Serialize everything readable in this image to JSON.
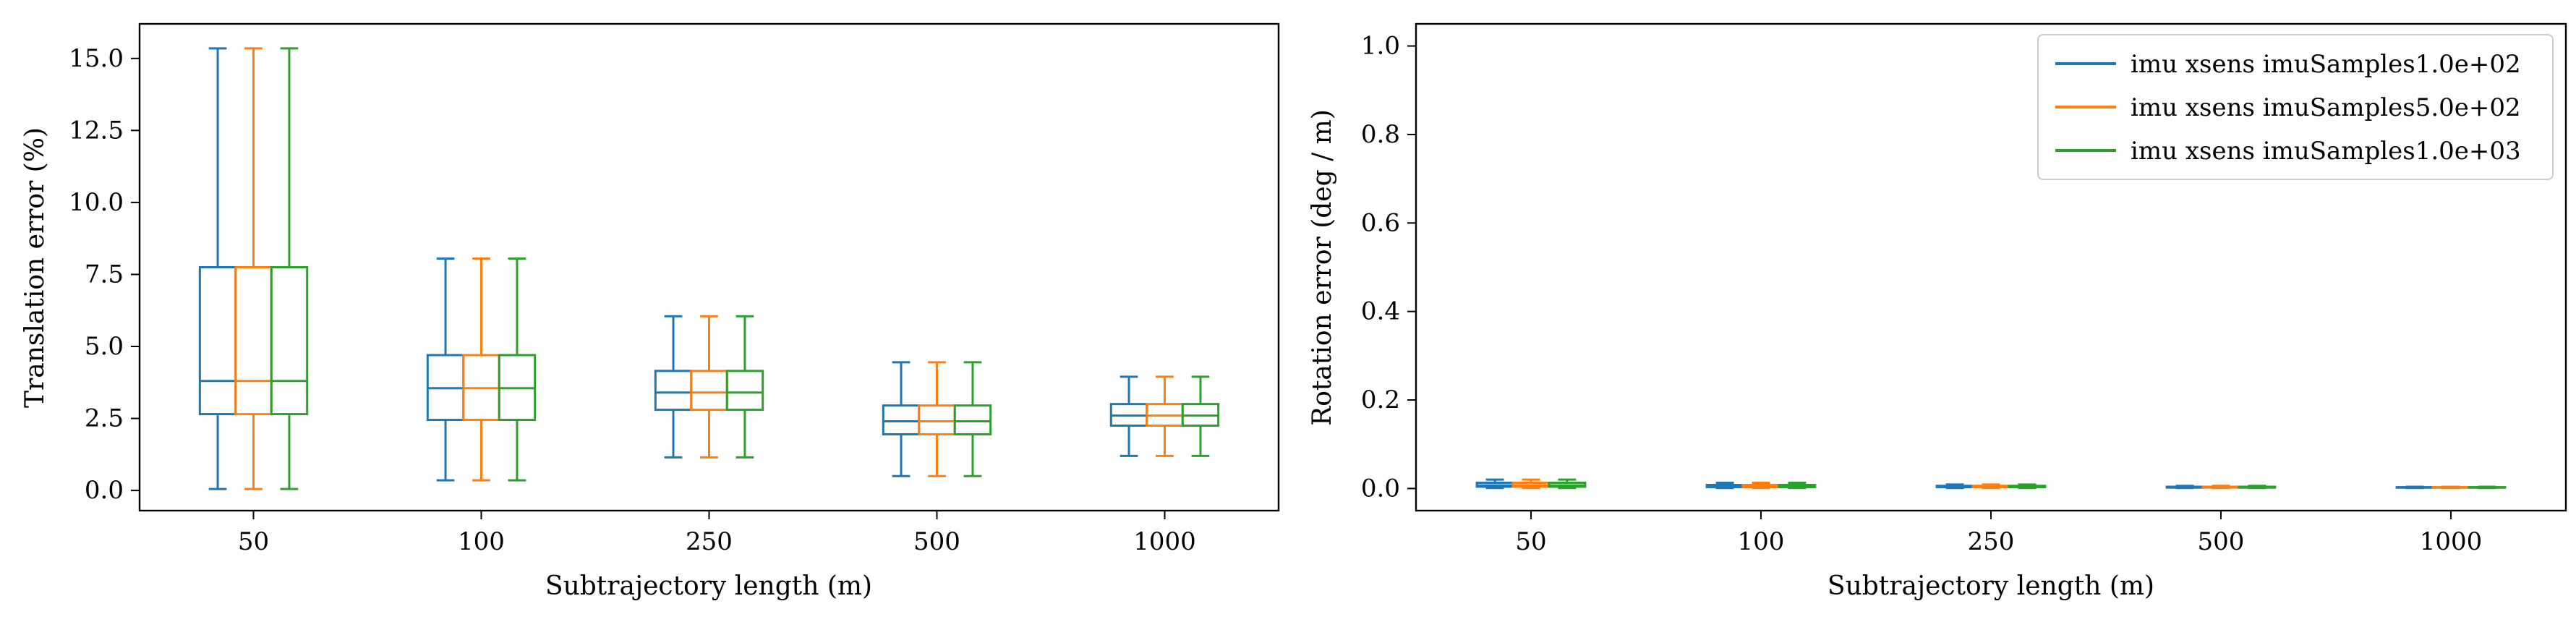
{
  "colors": {
    "series": [
      "#1f77b4",
      "#ff7f0e",
      "#2ca02c"
    ],
    "axes": "#000000",
    "legend_border": "#cccccc"
  },
  "legend": {
    "placement": "upper-right of right panel",
    "entries": [
      "imu xsens imuSamples1.0e+02",
      "imu xsens imuSamples5.0e+02",
      "imu xsens imuSamples1.0e+03"
    ]
  },
  "chart_data": [
    {
      "type": "box",
      "xlabel": "Subtrajectory length (m)",
      "ylabel": "Translation error (%)",
      "categories": [
        "50",
        "100",
        "250",
        "500",
        "1000"
      ],
      "ylim": [
        -0.7,
        16.2
      ],
      "yticks": [
        0.0,
        2.5,
        5.0,
        7.5,
        10.0,
        12.5,
        15.0
      ],
      "ytick_labels": [
        "0.0",
        "2.5",
        "5.0",
        "7.5",
        "10.0",
        "12.5",
        "15.0"
      ],
      "grid": false,
      "series": [
        {
          "name": "imu xsens imuSamples1.0e+02",
          "boxes": [
            {
              "whislo": 0.05,
              "q1": 2.65,
              "med": 3.8,
              "q3": 7.75,
              "whishi": 15.35
            },
            {
              "whislo": 0.35,
              "q1": 2.45,
              "med": 3.55,
              "q3": 4.7,
              "whishi": 8.05
            },
            {
              "whislo": 1.15,
              "q1": 2.8,
              "med": 3.4,
              "q3": 4.15,
              "whishi": 6.05
            },
            {
              "whislo": 0.5,
              "q1": 1.95,
              "med": 2.4,
              "q3": 2.95,
              "whishi": 4.45
            },
            {
              "whislo": 1.2,
              "q1": 2.25,
              "med": 2.6,
              "q3": 3.0,
              "whishi": 3.95
            }
          ]
        },
        {
          "name": "imu xsens imuSamples5.0e+02",
          "boxes": [
            {
              "whislo": 0.05,
              "q1": 2.65,
              "med": 3.8,
              "q3": 7.75,
              "whishi": 15.35
            },
            {
              "whislo": 0.35,
              "q1": 2.45,
              "med": 3.55,
              "q3": 4.7,
              "whishi": 8.05
            },
            {
              "whislo": 1.15,
              "q1": 2.8,
              "med": 3.4,
              "q3": 4.15,
              "whishi": 6.05
            },
            {
              "whislo": 0.5,
              "q1": 1.95,
              "med": 2.4,
              "q3": 2.95,
              "whishi": 4.45
            },
            {
              "whislo": 1.2,
              "q1": 2.25,
              "med": 2.6,
              "q3": 3.0,
              "whishi": 3.95
            }
          ]
        },
        {
          "name": "imu xsens imuSamples1.0e+03",
          "boxes": [
            {
              "whislo": 0.05,
              "q1": 2.65,
              "med": 3.8,
              "q3": 7.75,
              "whishi": 15.35
            },
            {
              "whislo": 0.35,
              "q1": 2.45,
              "med": 3.55,
              "q3": 4.7,
              "whishi": 8.05
            },
            {
              "whislo": 1.15,
              "q1": 2.8,
              "med": 3.4,
              "q3": 4.15,
              "whishi": 6.05
            },
            {
              "whislo": 0.5,
              "q1": 1.95,
              "med": 2.4,
              "q3": 2.95,
              "whishi": 4.45
            },
            {
              "whislo": 1.2,
              "q1": 2.25,
              "med": 2.6,
              "q3": 3.0,
              "whishi": 3.95
            }
          ]
        }
      ]
    },
    {
      "type": "box",
      "xlabel": "Subtrajectory length (m)",
      "ylabel": "Rotation error (deg / m)",
      "categories": [
        "50",
        "100",
        "250",
        "500",
        "1000"
      ],
      "ylim": [
        -0.05,
        1.05
      ],
      "yticks": [
        0.0,
        0.2,
        0.4,
        0.6,
        0.8,
        1.0
      ],
      "ytick_labels": [
        "0.0",
        "0.2",
        "0.4",
        "0.6",
        "0.8",
        "1.0"
      ],
      "grid": false,
      "series": [
        {
          "name": "imu xsens imuSamples1.0e+02",
          "boxes": [
            {
              "whislo": 0.001,
              "q1": 0.004,
              "med": 0.007,
              "q3": 0.013,
              "whishi": 0.02
            },
            {
              "whislo": 0.001,
              "q1": 0.003,
              "med": 0.005,
              "q3": 0.008,
              "whishi": 0.013
            },
            {
              "whislo": 0.001,
              "q1": 0.003,
              "med": 0.004,
              "q3": 0.006,
              "whishi": 0.009
            },
            {
              "whislo": 0.001,
              "q1": 0.002,
              "med": 0.003,
              "q3": 0.004,
              "whishi": 0.006
            },
            {
              "whislo": 0.001,
              "q1": 0.002,
              "med": 0.002,
              "q3": 0.003,
              "whishi": 0.004
            }
          ]
        },
        {
          "name": "imu xsens imuSamples5.0e+02",
          "boxes": [
            {
              "whislo": 0.001,
              "q1": 0.004,
              "med": 0.007,
              "q3": 0.013,
              "whishi": 0.02
            },
            {
              "whislo": 0.001,
              "q1": 0.003,
              "med": 0.005,
              "q3": 0.008,
              "whishi": 0.013
            },
            {
              "whislo": 0.001,
              "q1": 0.003,
              "med": 0.004,
              "q3": 0.006,
              "whishi": 0.009
            },
            {
              "whislo": 0.001,
              "q1": 0.002,
              "med": 0.003,
              "q3": 0.004,
              "whishi": 0.006
            },
            {
              "whislo": 0.001,
              "q1": 0.002,
              "med": 0.002,
              "q3": 0.003,
              "whishi": 0.004
            }
          ]
        },
        {
          "name": "imu xsens imuSamples1.0e+03",
          "boxes": [
            {
              "whislo": 0.001,
              "q1": 0.004,
              "med": 0.007,
              "q3": 0.013,
              "whishi": 0.02
            },
            {
              "whislo": 0.001,
              "q1": 0.003,
              "med": 0.005,
              "q3": 0.008,
              "whishi": 0.013
            },
            {
              "whislo": 0.001,
              "q1": 0.003,
              "med": 0.004,
              "q3": 0.006,
              "whishi": 0.009
            },
            {
              "whislo": 0.001,
              "q1": 0.002,
              "med": 0.003,
              "q3": 0.004,
              "whishi": 0.006
            },
            {
              "whislo": 0.001,
              "q1": 0.002,
              "med": 0.002,
              "q3": 0.003,
              "whishi": 0.004
            }
          ]
        }
      ]
    }
  ]
}
